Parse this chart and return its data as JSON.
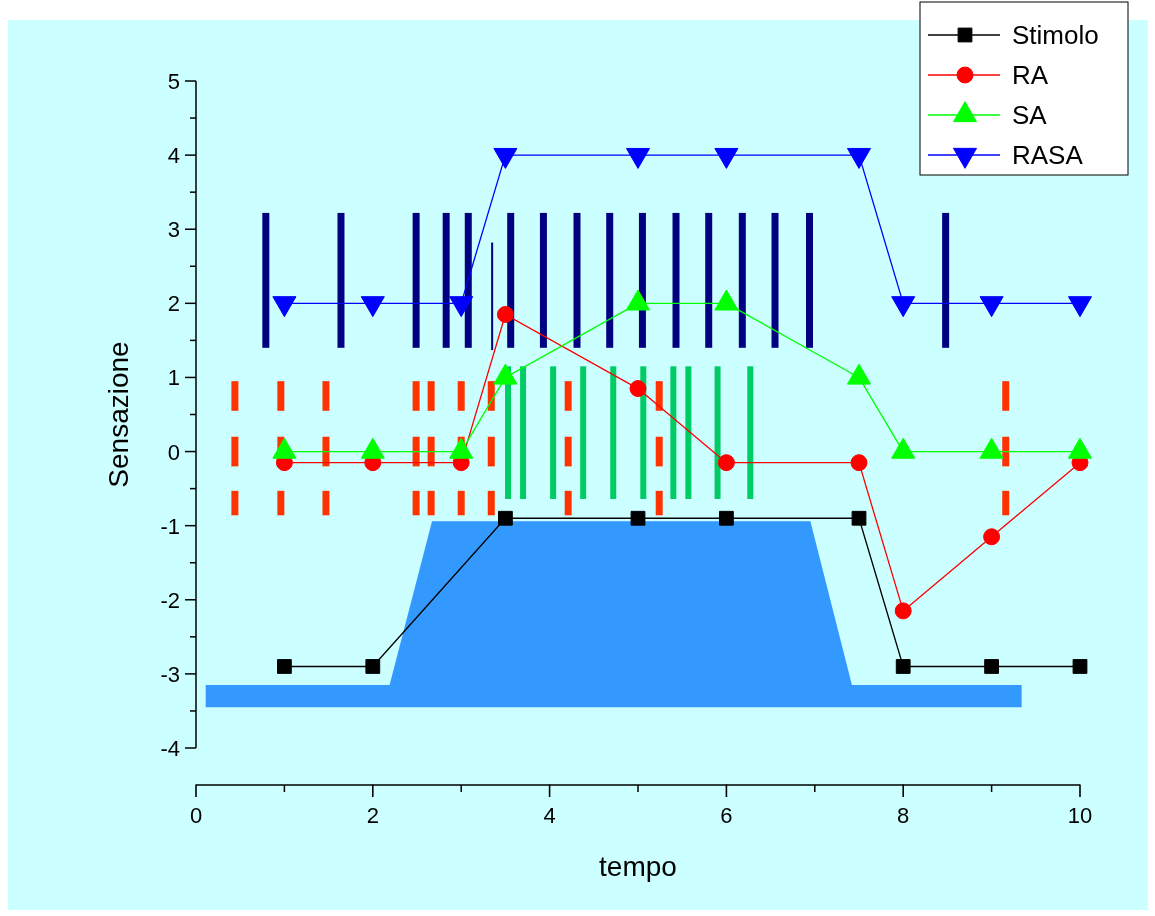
{
  "chart_data": {
    "type": "line",
    "xlabel": "tempo",
    "ylabel": "Sensazione",
    "xlim": [
      0,
      10
    ],
    "ylim": [
      -4,
      5
    ],
    "xticks": [
      0,
      2,
      4,
      6,
      8,
      10
    ],
    "yticks": [
      -4,
      {
        "value": -3.5,
        "label": null
      },
      -3,
      {
        "value": -2.5,
        "label": null
      },
      -2,
      {
        "value": -1.5,
        "label": null
      },
      -1,
      {
        "value": -0.5,
        "label": null
      },
      0,
      {
        "value": 0.5,
        "label": null
      },
      1,
      {
        "value": 1.5,
        "label": null
      },
      2,
      {
        "value": 2.5,
        "label": null
      },
      3,
      {
        "value": 3.5,
        "label": null
      },
      4,
      {
        "value": 4.5,
        "label": null
      },
      5
    ],
    "grid": false,
    "legend": "top right",
    "line_style": "solid",
    "series": [
      {
        "name": "Stimolo",
        "color": "#000000",
        "marker": "square",
        "x": [
          1,
          2,
          3.5,
          5,
          6,
          7.5,
          8,
          9,
          10
        ],
        "values": [
          -2.9,
          -2.9,
          -0.9,
          -0.9,
          -0.9,
          -0.9,
          -2.9,
          -2.9,
          -2.9
        ]
      },
      {
        "name": "RA",
        "color": "#ff0000",
        "marker": "circle",
        "x": [
          1,
          2,
          3,
          3.5,
          5,
          6,
          7.5,
          8,
          9,
          10
        ],
        "values": [
          -0.15,
          -0.15,
          -0.15,
          1.85,
          0.85,
          -0.15,
          -0.15,
          -2.15,
          -1.15,
          -0.15
        ]
      },
      {
        "name": "SA",
        "color": "#00ff00",
        "marker": "triangle",
        "x": [
          1,
          2,
          3,
          3.5,
          5,
          6,
          7.5,
          8,
          9,
          10
        ],
        "values": [
          0,
          0,
          0,
          1,
          2,
          2,
          1,
          0,
          0,
          0
        ]
      },
      {
        "name": "RASA",
        "color": "#0000ff",
        "marker": "triangle-down",
        "x": [
          1,
          2,
          3,
          3.5,
          5,
          6,
          7.5,
          8,
          9,
          10
        ],
        "values": [
          2,
          2,
          2,
          4,
          4,
          4,
          4,
          2,
          2,
          2
        ]
      }
    ]
  }
}
